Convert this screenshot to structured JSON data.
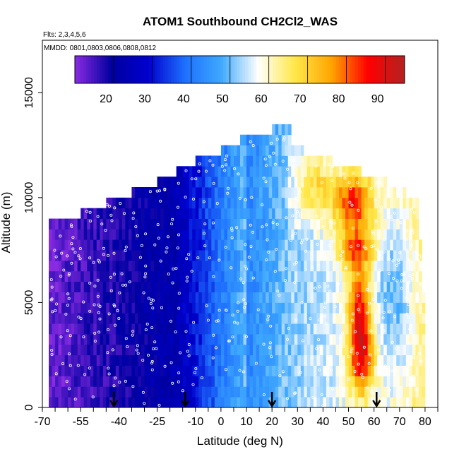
{
  "chart_data": {
    "type": "heatmap",
    "title": "ATOM1 Southbound CH2Cl2_WAS",
    "flights_label": "Flts: 2,3,4,5,6",
    "dates_label": "MMDD: 0801,0803,0806,0808,0812",
    "xlabel": "Latitude (deg N)",
    "ylabel": "Altitude (m)",
    "xlim": [
      -70,
      85
    ],
    "ylim": [
      0,
      17500
    ],
    "x_ticks": [
      -70,
      -55,
      -40,
      -25,
      -10,
      0,
      10,
      20,
      30,
      40,
      50,
      60,
      70,
      80
    ],
    "y_ticks": [
      0,
      5000,
      10000,
      15000
    ],
    "colorbar": {
      "range": [
        10,
        95
      ],
      "ticks": [
        20,
        30,
        40,
        50,
        60,
        70,
        80,
        90
      ],
      "colors": [
        "#8a2be2",
        "#0000a0",
        "#0000cd",
        "#1e6fff",
        "#3fa9ff",
        "#ffffff",
        "#ffe84a",
        "#ffa500",
        "#ff0000",
        "#b22222"
      ]
    },
    "flight_arrows_lat": [
      -42,
      -14,
      20,
      61
    ],
    "field_description": "Latitude–altitude curtain of CH2Cl2 mixing ratio (ppt); low values (~10–20) in the southern hemisphere, increasing northward with maxima (~85–90) near 50–60°N"
  }
}
